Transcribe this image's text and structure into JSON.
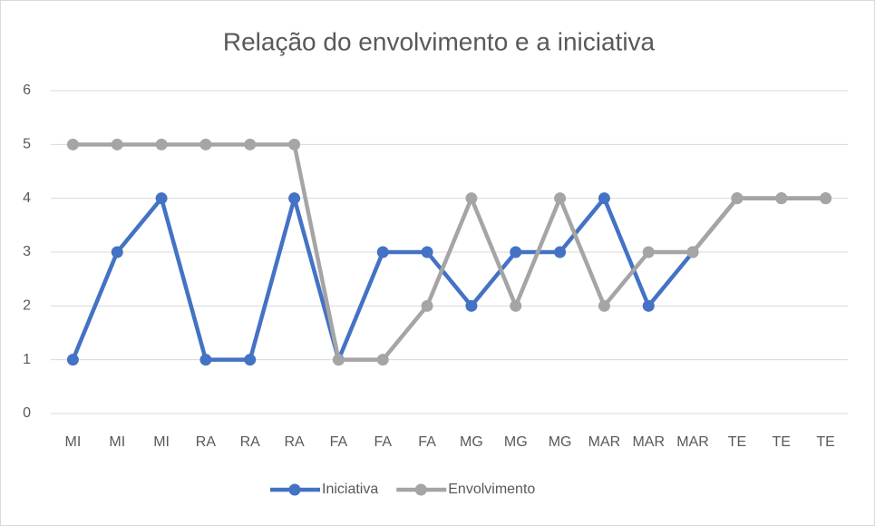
{
  "chart_data": {
    "type": "line",
    "title": "Relação do envolvimento e a iniciativa",
    "categories": [
      "MI",
      "MI",
      "MI",
      "RA",
      "RA",
      "RA",
      "FA",
      "FA",
      "FA",
      "MG",
      "MG",
      "MG",
      "MAR",
      "MAR",
      "MAR",
      "TE",
      "TE",
      "TE"
    ],
    "series": [
      {
        "name": "Iniciativa",
        "color": "#4472c4",
        "values": [
          1,
          3,
          4,
          1,
          1,
          4,
          1,
          3,
          3,
          2,
          3,
          3,
          4,
          2,
          3,
          4,
          4,
          4
        ]
      },
      {
        "name": "Envolvimento",
        "color": "#a5a5a5",
        "values": [
          5,
          5,
          5,
          5,
          5,
          5,
          1,
          1,
          2,
          4,
          2,
          4,
          2,
          3,
          3,
          4,
          4,
          4
        ]
      }
    ],
    "ylim": [
      0,
      6
    ],
    "yticks": [
      0,
      1,
      2,
      3,
      4,
      5,
      6
    ],
    "grid": true,
    "legend": "bottom"
  }
}
